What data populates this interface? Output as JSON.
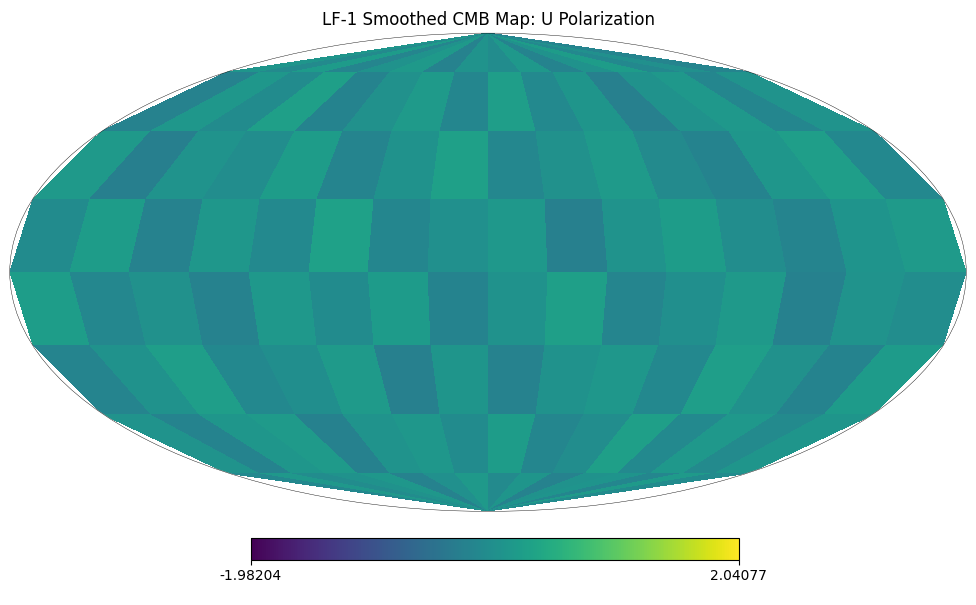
{
  "chart_data": {
    "type": "map",
    "title": "LF-1 Smoothed CMB Map: U Polarization",
    "cells": [
      [
        0.12,
        -0.08,
        0.21,
        -0.15,
        0.05,
        0.18,
        -0.22,
        0.09,
        -0.04,
        0.16,
        -0.19,
        0.07,
        0.23,
        -0.11,
        0.02,
        -0.17
      ],
      [
        -0.21,
        0.14,
        -0.06,
        0.27,
        -0.18,
        0.03,
        0.19,
        -0.13,
        0.25,
        -0.09,
        0.11,
        -0.24,
        0.06,
        0.17,
        -0.14,
        0.08
      ],
      [
        0.18,
        -0.26,
        0.09,
        -0.03,
        0.22,
        -0.17,
        0.05,
        0.29,
        -0.12,
        0.04,
        0.2,
        -0.07,
        -0.19,
        0.13,
        0.26,
        -0.1
      ],
      [
        -0.05,
        0.23,
        -0.2,
        0.15,
        -0.09,
        0.31,
        -0.14,
        0.02,
        0.17,
        -0.25,
        0.08,
        0.22,
        -0.03,
        -0.16,
        0.1,
        0.19
      ],
      [
        0.24,
        -0.12,
        0.04,
        -0.22,
        0.16,
        -0.06,
        0.21,
        -0.18,
        0.07,
        0.28,
        -0.15,
        0.01,
        0.18,
        -0.23,
        0.09,
        -0.02
      ],
      [
        -0.16,
        0.07,
        0.26,
        -0.1,
        -0.01,
        0.19,
        -0.24,
        0.12,
        -0.2,
        0.06,
        0.14,
        -0.11,
        0.25,
        0.03,
        -0.18,
        0.21
      ],
      [
        0.09,
        -0.19,
        0.13,
        0.2,
        -0.23,
        0.08,
        0.15,
        -0.05,
        0.22,
        -0.14,
        -0.02,
        0.27,
        -0.09,
        0.16,
        -0.07,
        0.11
      ],
      [
        -0.1,
        0.17,
        -0.04,
        0.06,
        0.14,
        -0.2,
        0.02,
        0.18,
        -0.08,
        0.12,
        -0.21,
        0.05,
        0.1,
        -0.13,
        0.2,
        -0.06
      ]
    ],
    "colorbar": {
      "range": [
        -1.98204,
        2.04077
      ],
      "ticks": [
        -1.98204,
        2.04077
      ]
    },
    "tick_labels": false,
    "grid": false
  }
}
